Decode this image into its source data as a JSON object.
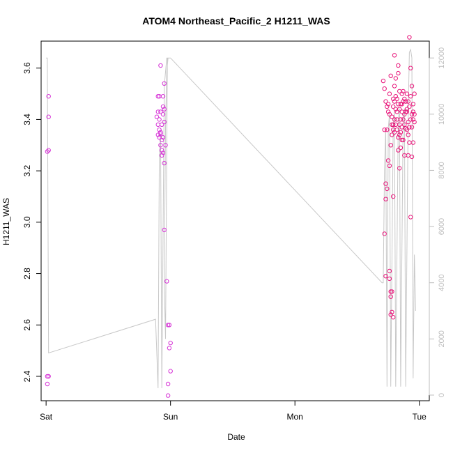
{
  "chart_data": {
    "type": "scatter",
    "title": "ATOM4 Northeast_Pacific_2 H1211_WAS",
    "xlabel": "Date",
    "ylabel": "H1211_WAS",
    "x_ticks": [
      "Sat",
      "Sun",
      "Mon",
      "Tue"
    ],
    "x_unit": "days since Sat 00:00",
    "xlim": [
      -0.04,
      3.08
    ],
    "ylim": [
      2.305,
      3.705
    ],
    "y_ticks": [
      "2.4",
      "2.6",
      "2.8",
      "3.0",
      "3.2",
      "3.4",
      "3.6"
    ],
    "y2lim": [
      -200,
      12600
    ],
    "y2_ticks": [
      "0",
      "2000",
      "4000",
      "6000",
      "8000",
      "10000",
      "12000"
    ],
    "grid": false,
    "legend": "none",
    "colors": {
      "points": "#e8157a",
      "points_early": "#d633d6",
      "altitude_line": "#c8c8c8"
    },
    "series": [
      {
        "values": [
          [
            0.01,
            2.37
          ],
          [
            0.01,
            2.4
          ],
          [
            0.02,
            2.4
          ],
          [
            0.01,
            3.275
          ],
          [
            0.02,
            3.28
          ],
          [
            0.02,
            3.41
          ],
          [
            0.02,
            3.49
          ],
          [
            0.9,
            3.49
          ],
          [
            0.91,
            3.49
          ],
          [
            0.9,
            3.43
          ],
          [
            0.92,
            3.43
          ],
          [
            0.89,
            3.41
          ],
          [
            0.91,
            3.4
          ],
          [
            0.9,
            3.38
          ],
          [
            0.91,
            3.36
          ],
          [
            0.92,
            3.35
          ],
          [
            0.9,
            3.34
          ],
          [
            0.91,
            3.33
          ],
          [
            0.93,
            3.32
          ],
          [
            0.92,
            3.3
          ],
          [
            0.93,
            3.28
          ],
          [
            0.94,
            3.27
          ],
          [
            0.93,
            3.26
          ],
          [
            0.92,
            3.345
          ],
          [
            0.94,
            3.33
          ],
          [
            0.95,
            3.23
          ],
          [
            0.94,
            3.42
          ],
          [
            0.95,
            3.44
          ],
          [
            0.93,
            3.38
          ],
          [
            0.94,
            3.45
          ],
          [
            0.95,
            3.39
          ],
          [
            0.94,
            3.49
          ],
          [
            0.95,
            3.54
          ],
          [
            0.92,
            3.61
          ],
          [
            0.96,
            3.3
          ],
          [
            0.95,
            2.97
          ],
          [
            0.97,
            2.77
          ],
          [
            0.98,
            2.6
          ],
          [
            0.99,
            2.6
          ],
          [
            1.0,
            2.53
          ],
          [
            0.99,
            2.51
          ],
          [
            1.0,
            2.42
          ],
          [
            0.98,
            2.37
          ],
          [
            0.98,
            2.325
          ],
          [
            2.71,
            3.55
          ],
          [
            2.72,
            3.52
          ],
          [
            2.73,
            3.47
          ],
          [
            2.74,
            3.45
          ],
          [
            2.75,
            3.43
          ],
          [
            2.72,
            3.36
          ],
          [
            2.74,
            3.36
          ],
          [
            2.75,
            3.24
          ],
          [
            2.73,
            3.15
          ],
          [
            2.74,
            3.13
          ],
          [
            2.73,
            3.09
          ],
          [
            2.72,
            2.955
          ],
          [
            2.73,
            2.79
          ],
          [
            2.76,
            2.78
          ],
          [
            2.77,
            2.73
          ],
          [
            2.78,
            2.73
          ],
          [
            2.77,
            2.71
          ],
          [
            2.78,
            2.65
          ],
          [
            2.77,
            2.64
          ],
          [
            2.79,
            2.63
          ],
          [
            2.76,
            2.81
          ],
          [
            2.79,
            3.1
          ],
          [
            2.76,
            3.22
          ],
          [
            2.77,
            3.3
          ],
          [
            2.76,
            3.5
          ],
          [
            2.77,
            3.57
          ],
          [
            2.79,
            3.45
          ],
          [
            2.78,
            3.41
          ],
          [
            2.8,
            3.4
          ],
          [
            2.79,
            3.36
          ],
          [
            2.8,
            3.53
          ],
          [
            2.8,
            3.65
          ],
          [
            2.81,
            3.56
          ],
          [
            2.82,
            3.48
          ],
          [
            2.83,
            3.61
          ],
          [
            2.83,
            3.58
          ],
          [
            2.84,
            3.51
          ],
          [
            2.82,
            3.43
          ],
          [
            2.81,
            3.38
          ],
          [
            2.84,
            3.34
          ],
          [
            2.83,
            3.28
          ],
          [
            2.84,
            3.21
          ],
          [
            2.85,
            3.29
          ],
          [
            2.85,
            3.4
          ],
          [
            2.86,
            3.46
          ],
          [
            2.87,
            3.51
          ],
          [
            2.86,
            3.37
          ],
          [
            2.88,
            3.42
          ],
          [
            2.87,
            3.32
          ],
          [
            2.89,
            3.47
          ],
          [
            2.9,
            3.5
          ],
          [
            2.88,
            3.26
          ],
          [
            2.9,
            3.43
          ],
          [
            2.91,
            3.39
          ],
          [
            2.92,
            3.31
          ],
          [
            2.92,
            3.45
          ],
          [
            2.93,
            3.49
          ],
          [
            2.94,
            3.53
          ],
          [
            2.93,
            3.6
          ],
          [
            2.95,
            3.43
          ],
          [
            2.94,
            3.37
          ],
          [
            2.95,
            3.31
          ],
          [
            2.96,
            3.39
          ],
          [
            2.96,
            3.5
          ],
          [
            2.93,
            3.02
          ],
          [
            2.94,
            3.255
          ],
          [
            2.92,
            3.72
          ],
          [
            2.89,
            3.365
          ],
          [
            2.91,
            3.26
          ],
          [
            2.81,
            3.44
          ],
          [
            2.78,
            3.34
          ],
          [
            2.85,
            3.46
          ],
          [
            2.86,
            3.5
          ],
          [
            2.9,
            3.36
          ],
          [
            2.82,
            3.4
          ],
          [
            2.8,
            3.47
          ],
          [
            2.84,
            3.44
          ],
          [
            2.88,
            3.38
          ],
          [
            2.91,
            3.47
          ],
          [
            2.95,
            3.46
          ],
          [
            2.79,
            3.38
          ],
          [
            2.83,
            3.33
          ],
          [
            2.87,
            3.4
          ],
          [
            2.89,
            3.43
          ],
          [
            2.92,
            3.37
          ],
          [
            2.8,
            3.35
          ],
          [
            2.76,
            3.42
          ],
          [
            2.84,
            3.38
          ],
          [
            2.86,
            3.43
          ],
          [
            2.94,
            3.42
          ],
          [
            2.9,
            3.44
          ],
          [
            2.75,
            3.46
          ],
          [
            2.81,
            3.49
          ],
          [
            2.85,
            3.35
          ],
          [
            2.87,
            3.47
          ],
          [
            2.93,
            3.4
          ],
          [
            2.83,
            3.46
          ],
          [
            2.78,
            3.38
          ],
          [
            2.79,
            3.48
          ],
          [
            2.86,
            3.32
          ],
          [
            2.82,
            3.36
          ],
          [
            2.88,
            3.48
          ],
          [
            2.91,
            3.34
          ],
          [
            2.95,
            3.4
          ],
          [
            2.96,
            3.42
          ]
        ]
      }
    ],
    "secondary_series": {
      "name": "",
      "axis": "right",
      "values": [
        [
          0.0,
          12000
        ],
        [
          0.01,
          12000
        ],
        [
          0.02,
          1500
        ],
        [
          0.88,
          2700
        ],
        [
          0.9,
          250
        ],
        [
          0.91,
          8500
        ],
        [
          0.92,
          9300
        ],
        [
          0.93,
          250
        ],
        [
          0.95,
          11000
        ],
        [
          0.96,
          11500
        ],
        [
          0.97,
          12000
        ],
        [
          0.98,
          12000
        ],
        [
          0.97,
          11500
        ],
        [
          0.96,
          9500
        ],
        [
          0.95,
          4000
        ],
        [
          0.96,
          2000
        ],
        [
          0.975,
          12000
        ],
        [
          1.0,
          12000
        ],
        [
          2.7,
          4000
        ],
        [
          2.71,
          4000
        ],
        [
          2.72,
          8000
        ],
        [
          2.73,
          9500
        ],
        [
          2.74,
          300
        ],
        [
          2.75,
          9500
        ],
        [
          2.76,
          10000
        ],
        [
          2.77,
          300
        ],
        [
          2.79,
          9600
        ],
        [
          2.8,
          10100
        ],
        [
          2.81,
          300
        ],
        [
          2.83,
          9700
        ],
        [
          2.84,
          10200
        ],
        [
          2.85,
          300
        ],
        [
          2.87,
          9900
        ],
        [
          2.88,
          10200
        ],
        [
          2.89,
          300
        ],
        [
          2.91,
          10000
        ],
        [
          2.92,
          12200
        ],
        [
          2.93,
          12300
        ],
        [
          2.94,
          12000
        ],
        [
          2.95,
          600
        ],
        [
          2.96,
          5000
        ],
        [
          2.97,
          3000
        ]
      ]
    }
  }
}
